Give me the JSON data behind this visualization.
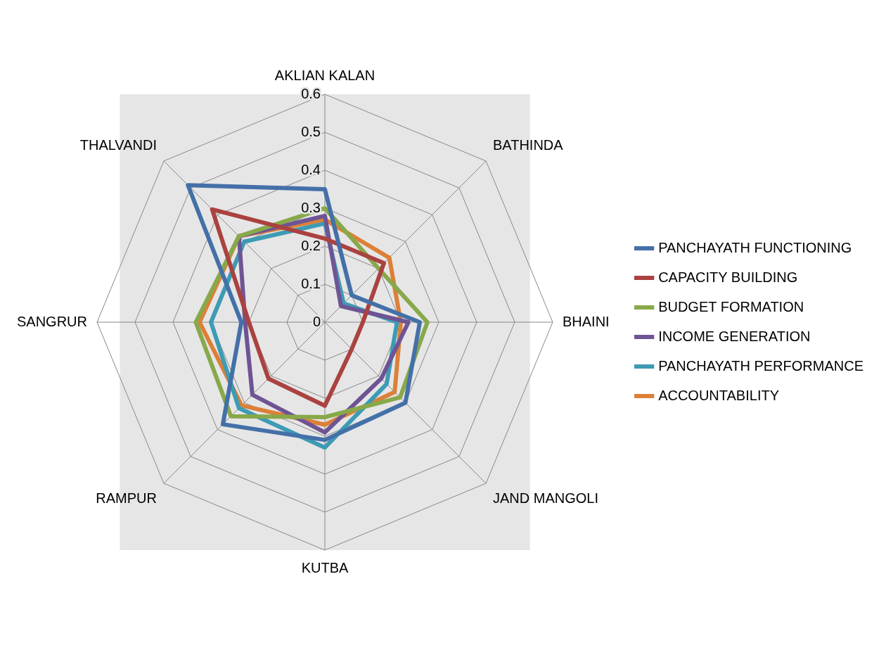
{
  "chart_data": {
    "type": "radar",
    "categories": [
      "AKLIAN KALAN",
      "BATHINDA",
      "BHAINI",
      "JAND MANGOLI",
      "KUTBA",
      "RAMPUR",
      "SANGRUR",
      "THALVANDI"
    ],
    "series": [
      {
        "name": "PANCHAYATH FUNCTIONING",
        "color": "#4470a8",
        "values": [
          0.35,
          0.1,
          0.25,
          0.3,
          0.31,
          0.38,
          0.22,
          0.51
        ]
      },
      {
        "name": "CAPACITY BUILDING",
        "color": "#aa4240",
        "values": [
          0.22,
          0.22,
          0.1,
          0.1,
          0.22,
          0.21,
          0.2,
          0.42
        ]
      },
      {
        "name": "BUDGET FORMATION",
        "color": "#88a84a",
        "values": [
          0.3,
          0.2,
          0.27,
          0.28,
          0.25,
          0.35,
          0.34,
          0.32
        ]
      },
      {
        "name": "INCOME GENERATION",
        "color": "#6e5494",
        "values": [
          0.28,
          0.06,
          0.22,
          0.21,
          0.29,
          0.27,
          0.21,
          0.32
        ]
      },
      {
        "name": "PANCHAYATH PERFORMANCE",
        "color": "#3d9bb4",
        "values": [
          0.26,
          0.07,
          0.19,
          0.23,
          0.33,
          0.32,
          0.3,
          0.3
        ]
      },
      {
        "name": "ACCOUNTABILITY",
        "color": "#dc8038",
        "values": [
          0.27,
          0.24,
          0.2,
          0.26,
          0.27,
          0.31,
          0.33,
          0.32
        ]
      }
    ],
    "ylim": [
      0,
      0.6
    ],
    "yticks": [
      0,
      0.1,
      0.2,
      0.3,
      0.4,
      0.5,
      0.6
    ],
    "grid": true,
    "legend": "right",
    "marker": "none",
    "line_style": "solid"
  }
}
